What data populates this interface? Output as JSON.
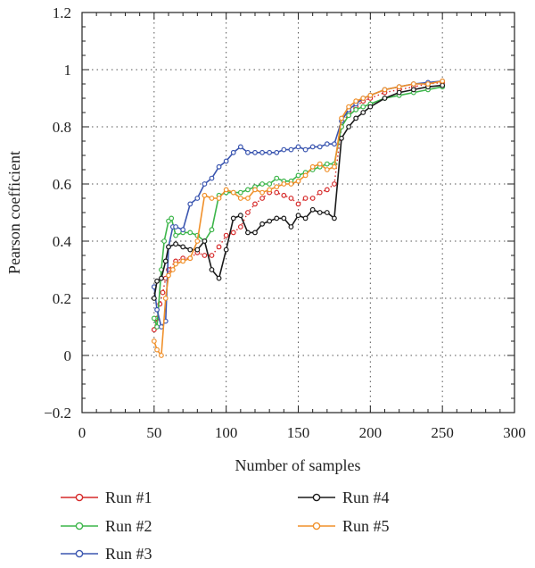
{
  "chart_data": {
    "type": "line",
    "title": "",
    "xlabel": "Number of samples",
    "ylabel": "Pearson coefficient",
    "xlim": [
      0,
      300
    ],
    "ylim": [
      -0.2,
      1.2
    ],
    "xticks": [
      0,
      50,
      100,
      150,
      200,
      250,
      300
    ],
    "yticks": [
      -0.2,
      0,
      0.2,
      0.4,
      0.6,
      0.8,
      1,
      1.2
    ],
    "xtick_labels": [
      "0",
      "50",
      "100",
      "150",
      "200",
      "250",
      "300"
    ],
    "ytick_labels": [
      "−0.2",
      "0",
      "0.2",
      "0.4",
      "0.6",
      "0.8",
      "1",
      "1.2"
    ],
    "grid": "dotted",
    "legend_position": "bottom",
    "series": [
      {
        "name": "Run #1",
        "color": "#d62a2a",
        "line_style": "dotted",
        "x": [
          50,
          52,
          54,
          56,
          58,
          60,
          65,
          70,
          75,
          80,
          85,
          90,
          95,
          100,
          105,
          110,
          115,
          120,
          125,
          130,
          135,
          140,
          145,
          150,
          155,
          160,
          165,
          170,
          175,
          180,
          185,
          190,
          195,
          200,
          210,
          220,
          230,
          240,
          250
        ],
        "y": [
          0.09,
          0.13,
          0.18,
          0.22,
          0.27,
          0.3,
          0.33,
          0.34,
          0.34,
          0.36,
          0.35,
          0.35,
          0.38,
          0.42,
          0.43,
          0.45,
          0.5,
          0.53,
          0.55,
          0.57,
          0.57,
          0.56,
          0.55,
          0.53,
          0.55,
          0.55,
          0.57,
          0.58,
          0.6,
          0.8,
          0.85,
          0.87,
          0.89,
          0.9,
          0.92,
          0.93,
          0.94,
          0.95,
          0.955
        ]
      },
      {
        "name": "Run #2",
        "color": "#3cb54a",
        "line_style": "solid",
        "x": [
          50,
          52,
          55,
          57,
          60,
          62,
          65,
          70,
          75,
          80,
          85,
          90,
          95,
          100,
          105,
          110,
          115,
          120,
          125,
          130,
          135,
          140,
          145,
          150,
          155,
          160,
          165,
          170,
          175,
          180,
          185,
          190,
          195,
          200,
          210,
          220,
          230,
          240,
          250
        ],
        "y": [
          0.13,
          0.1,
          0.3,
          0.4,
          0.47,
          0.48,
          0.42,
          0.43,
          0.43,
          0.42,
          0.4,
          0.44,
          0.56,
          0.57,
          0.57,
          0.57,
          0.58,
          0.59,
          0.6,
          0.6,
          0.62,
          0.61,
          0.61,
          0.63,
          0.64,
          0.65,
          0.66,
          0.67,
          0.67,
          0.8,
          0.84,
          0.86,
          0.87,
          0.88,
          0.9,
          0.91,
          0.92,
          0.93,
          0.94
        ]
      },
      {
        "name": "Run #3",
        "color": "#3b56b0",
        "line_style": "solid",
        "x": [
          50,
          52,
          55,
          58,
          60,
          63,
          65,
          70,
          75,
          80,
          85,
          90,
          95,
          100,
          105,
          110,
          115,
          120,
          125,
          130,
          135,
          140,
          145,
          150,
          155,
          160,
          165,
          170,
          175,
          180,
          185,
          190,
          195,
          200,
          210,
          220,
          230,
          240,
          250
        ],
        "y": [
          0.24,
          0.16,
          0.1,
          0.12,
          0.38,
          0.45,
          0.45,
          0.44,
          0.53,
          0.55,
          0.6,
          0.62,
          0.66,
          0.68,
          0.71,
          0.73,
          0.71,
          0.71,
          0.71,
          0.71,
          0.71,
          0.72,
          0.72,
          0.73,
          0.72,
          0.73,
          0.73,
          0.74,
          0.74,
          0.82,
          0.86,
          0.88,
          0.9,
          0.91,
          0.93,
          0.94,
          0.95,
          0.955,
          0.96
        ]
      },
      {
        "name": "Run #4",
        "color": "#1a1a1a",
        "line_style": "solid",
        "x": [
          50,
          52,
          55,
          58,
          60,
          65,
          70,
          75,
          80,
          85,
          90,
          95,
          100,
          105,
          110,
          115,
          120,
          125,
          130,
          135,
          140,
          145,
          150,
          155,
          160,
          165,
          170,
          175,
          180,
          185,
          190,
          195,
          200,
          210,
          220,
          230,
          240,
          250
        ],
        "y": [
          0.2,
          0.26,
          0.27,
          0.33,
          0.38,
          0.39,
          0.38,
          0.37,
          0.37,
          0.4,
          0.3,
          0.27,
          0.37,
          0.48,
          0.49,
          0.43,
          0.43,
          0.46,
          0.47,
          0.48,
          0.48,
          0.45,
          0.49,
          0.48,
          0.51,
          0.5,
          0.5,
          0.48,
          0.76,
          0.8,
          0.83,
          0.85,
          0.87,
          0.9,
          0.92,
          0.93,
          0.94,
          0.945
        ]
      },
      {
        "name": "Run #5",
        "color": "#f0902a",
        "line_style": "solid",
        "x": [
          50,
          52,
          55,
          58,
          60,
          63,
          65,
          70,
          75,
          80,
          85,
          90,
          95,
          100,
          105,
          110,
          115,
          120,
          125,
          130,
          135,
          140,
          145,
          150,
          155,
          160,
          165,
          170,
          175,
          180,
          185,
          190,
          195,
          200,
          210,
          220,
          230,
          240,
          250
        ],
        "y": [
          0.05,
          0.02,
          0.0,
          0.2,
          0.28,
          0.3,
          0.32,
          0.33,
          0.34,
          0.4,
          0.56,
          0.55,
          0.55,
          0.58,
          0.57,
          0.55,
          0.55,
          0.58,
          0.57,
          0.58,
          0.59,
          0.6,
          0.6,
          0.61,
          0.63,
          0.66,
          0.67,
          0.65,
          0.66,
          0.83,
          0.87,
          0.89,
          0.9,
          0.91,
          0.93,
          0.94,
          0.95,
          0.95,
          0.96
        ]
      }
    ]
  }
}
